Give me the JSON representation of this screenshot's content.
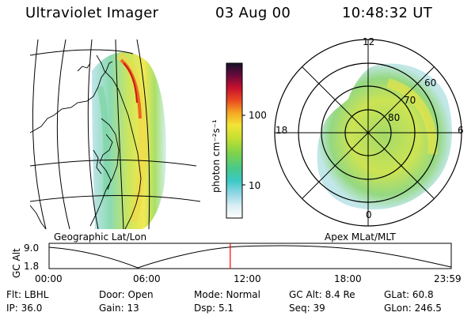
{
  "header": {
    "title": "Ultraviolet Imager",
    "date": "03 Aug 00",
    "time": "10:48:32 UT"
  },
  "left_panel": {
    "caption": "Geographic Lat/Lon"
  },
  "right_panel": {
    "caption": "Apex MLat/MLT",
    "mlt_labels": {
      "top": "12",
      "bottom": "0",
      "left": "18",
      "right": "6"
    },
    "lat_labels": [
      "60",
      "70",
      "80"
    ]
  },
  "colorbar": {
    "unit_label": "photon cm⁻²s⁻¹",
    "tick_labels": [
      "100",
      "10"
    ]
  },
  "alt_plot": {
    "ylabel": "GC Alt",
    "y_ticks": [
      "9.0",
      "1.8"
    ],
    "x_ticks": [
      "00:00",
      "06:00",
      "12:00",
      "18:00",
      "23:59"
    ],
    "marker_time_hours": 10.81
  },
  "footer": {
    "row1": [
      "Flt: LBHL",
      "Door: Open",
      "Mode: Normal",
      "GC Alt: 8.4 Re",
      "GLat:  60.8"
    ],
    "row2": [
      "IP: 36.0",
      "Gain: 13",
      "Dsp:    5.1",
      "Seq: 39",
      "GLon: 246.5"
    ]
  },
  "colors": {
    "marker": "#ff0000",
    "lines": "#000000"
  }
}
